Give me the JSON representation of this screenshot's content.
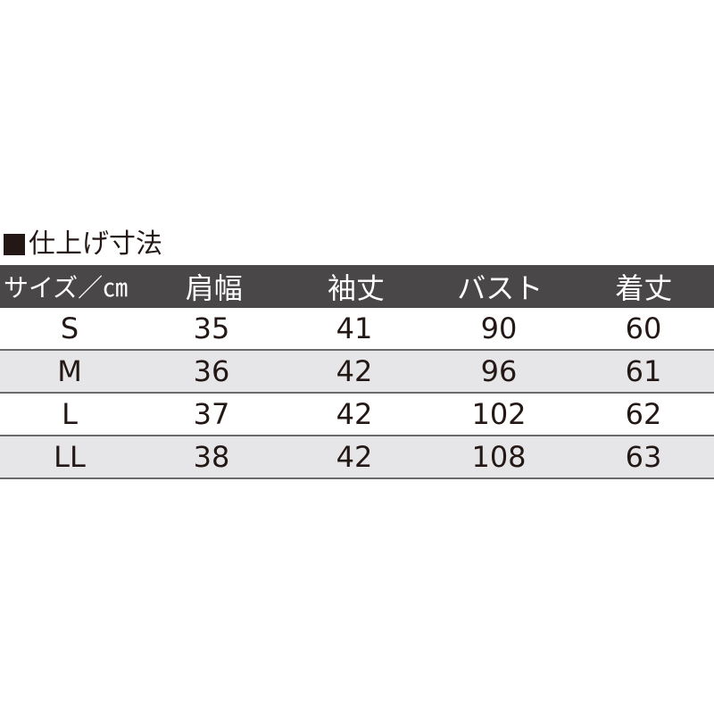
{
  "title": "仕上げ寸法",
  "title_marker_icon": "black-square",
  "header": [
    "サイズ／㎝",
    "肩幅",
    "袖丈",
    "バスト",
    "着丈"
  ],
  "rows": [
    [
      "S",
      "35",
      "41",
      "90",
      "60"
    ],
    [
      "M",
      "36",
      "42",
      "96",
      "61"
    ],
    [
      "L",
      "37",
      "42",
      "102",
      "62"
    ],
    [
      "LL",
      "38",
      "42",
      "108",
      "63"
    ]
  ],
  "colors": {
    "header_bg": "#4a4748",
    "alt_row_bg": "#e6e6e8",
    "text": "#231815"
  }
}
